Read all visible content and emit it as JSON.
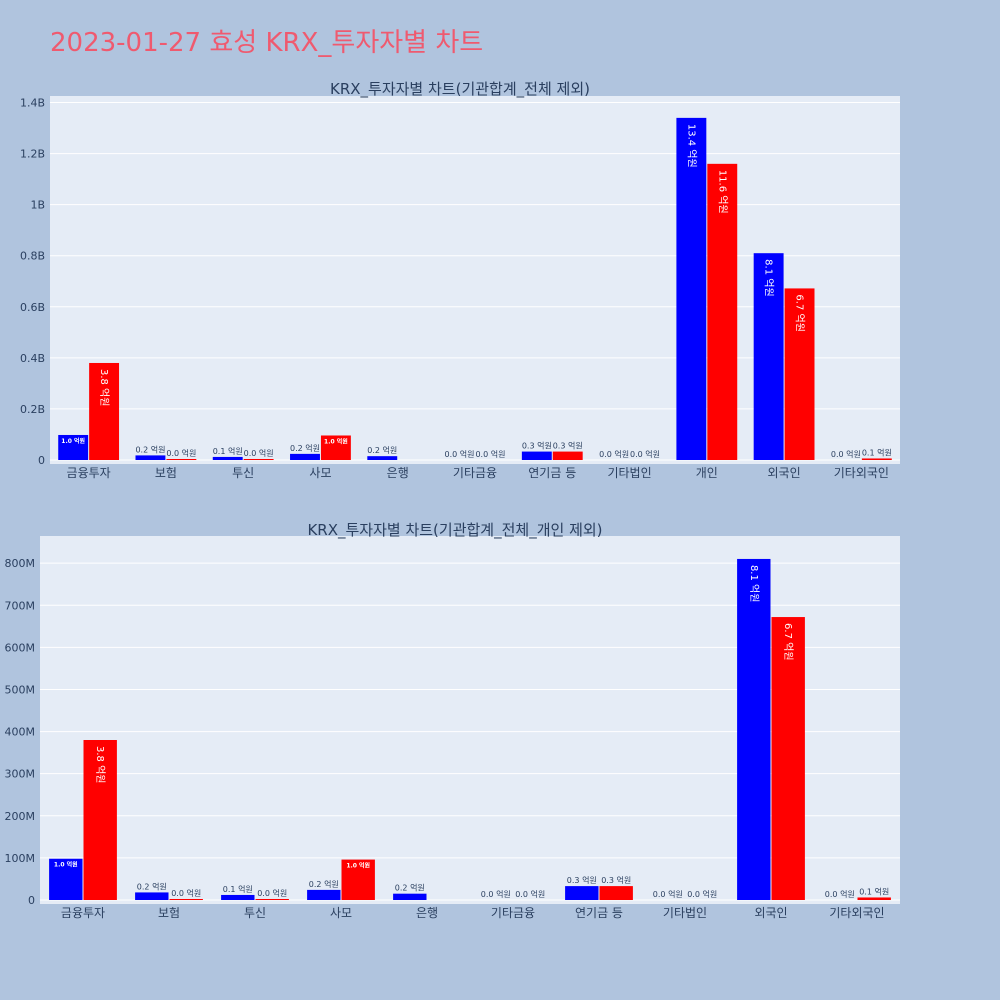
{
  "page": {
    "title": "2023-01-27 효성 KRX_투자자별 차트"
  },
  "colors": {
    "background": "#b0c4de",
    "plot_bg": "#e5ecf6",
    "grid": "#ffffff",
    "series_a": "#0000ff",
    "series_b": "#ff0000",
    "title": "#ef5a6f",
    "text": "#2a3f5f"
  },
  "chart_data": [
    {
      "type": "bar",
      "title": "KRX_투자자별 차트(기관합계_전체 제외)",
      "categories": [
        "금융투자",
        "보험",
        "투신",
        "사모",
        "은행",
        "기타금융",
        "연기금 등",
        "기타법인",
        "개인",
        "외국인",
        "기타외국인"
      ],
      "series": [
        {
          "color": "#0000ff",
          "values": [
            98000000,
            18000000,
            12000000,
            24000000,
            15000000,
            0,
            33000000,
            0,
            1340000000,
            810000000,
            0
          ],
          "labels": [
            "1.0 억원",
            "0.2 억원",
            "0.1 억원",
            "0.2 억원",
            "0.2 억원",
            "0.0 억원",
            "0.3 억원",
            "0.0 억원",
            "13.4 억원",
            "8.1 억원",
            "0.0 억원"
          ]
        },
        {
          "color": "#ff0000",
          "values": [
            380000000,
            2000000,
            1000000,
            96000000,
            0,
            0,
            33000000,
            0,
            1160000000,
            672000000,
            6000000
          ],
          "labels": [
            "3.8 억원",
            "0.0 억원",
            "0.0 억원",
            "1.0 억원",
            "",
            "0.0 억원",
            "0.3 억원",
            "0.0 억원",
            "11.6 억원",
            "6.7 억원",
            "0.1 억원"
          ]
        }
      ],
      "yticks": [
        0,
        200000000,
        400000000,
        600000000,
        800000000,
        1000000000,
        1200000000,
        1400000000
      ],
      "ytick_labels": [
        "0",
        "0.2B",
        "0.4B",
        "0.6B",
        "0.8B",
        "1B",
        "1.2B",
        "1.4B"
      ],
      "ylim": [
        0,
        1410000000
      ],
      "grid": true
    },
    {
      "type": "bar",
      "title": "KRX_투자자별 차트(기관합계_전체_개인 제외)",
      "categories": [
        "금융투자",
        "보험",
        "투신",
        "사모",
        "은행",
        "기타금융",
        "연기금 등",
        "기타법인",
        "외국인",
        "기타외국인"
      ],
      "series": [
        {
          "color": "#0000ff",
          "values": [
            98000000,
            18000000,
            12000000,
            24000000,
            15000000,
            0,
            33000000,
            0,
            810000000,
            0
          ],
          "labels": [
            "1.0 억원",
            "0.2 억원",
            "0.1 억원",
            "0.2 억원",
            "0.2 억원",
            "0.0 억원",
            "0.3 억원",
            "0.0 억원",
            "8.1 억원",
            "0.0 억원"
          ]
        },
        {
          "color": "#ff0000",
          "values": [
            380000000,
            2000000,
            1000000,
            96000000,
            0,
            0,
            33000000,
            0,
            672000000,
            6000000
          ],
          "labels": [
            "3.8 억원",
            "0.0 억원",
            "0.0 억원",
            "1.0 억원",
            "",
            "0.0 억원",
            "0.3 억원",
            "0.0 억원",
            "6.7 억원",
            "0.1 억원"
          ]
        }
      ],
      "yticks": [
        0,
        100000000,
        200000000,
        300000000,
        400000000,
        500000000,
        600000000,
        700000000,
        800000000
      ],
      "ytick_labels": [
        "0",
        "100M",
        "200M",
        "300M",
        "400M",
        "500M",
        "600M",
        "700M",
        "800M"
      ],
      "ylim": [
        0,
        855000000
      ],
      "grid": true
    }
  ]
}
